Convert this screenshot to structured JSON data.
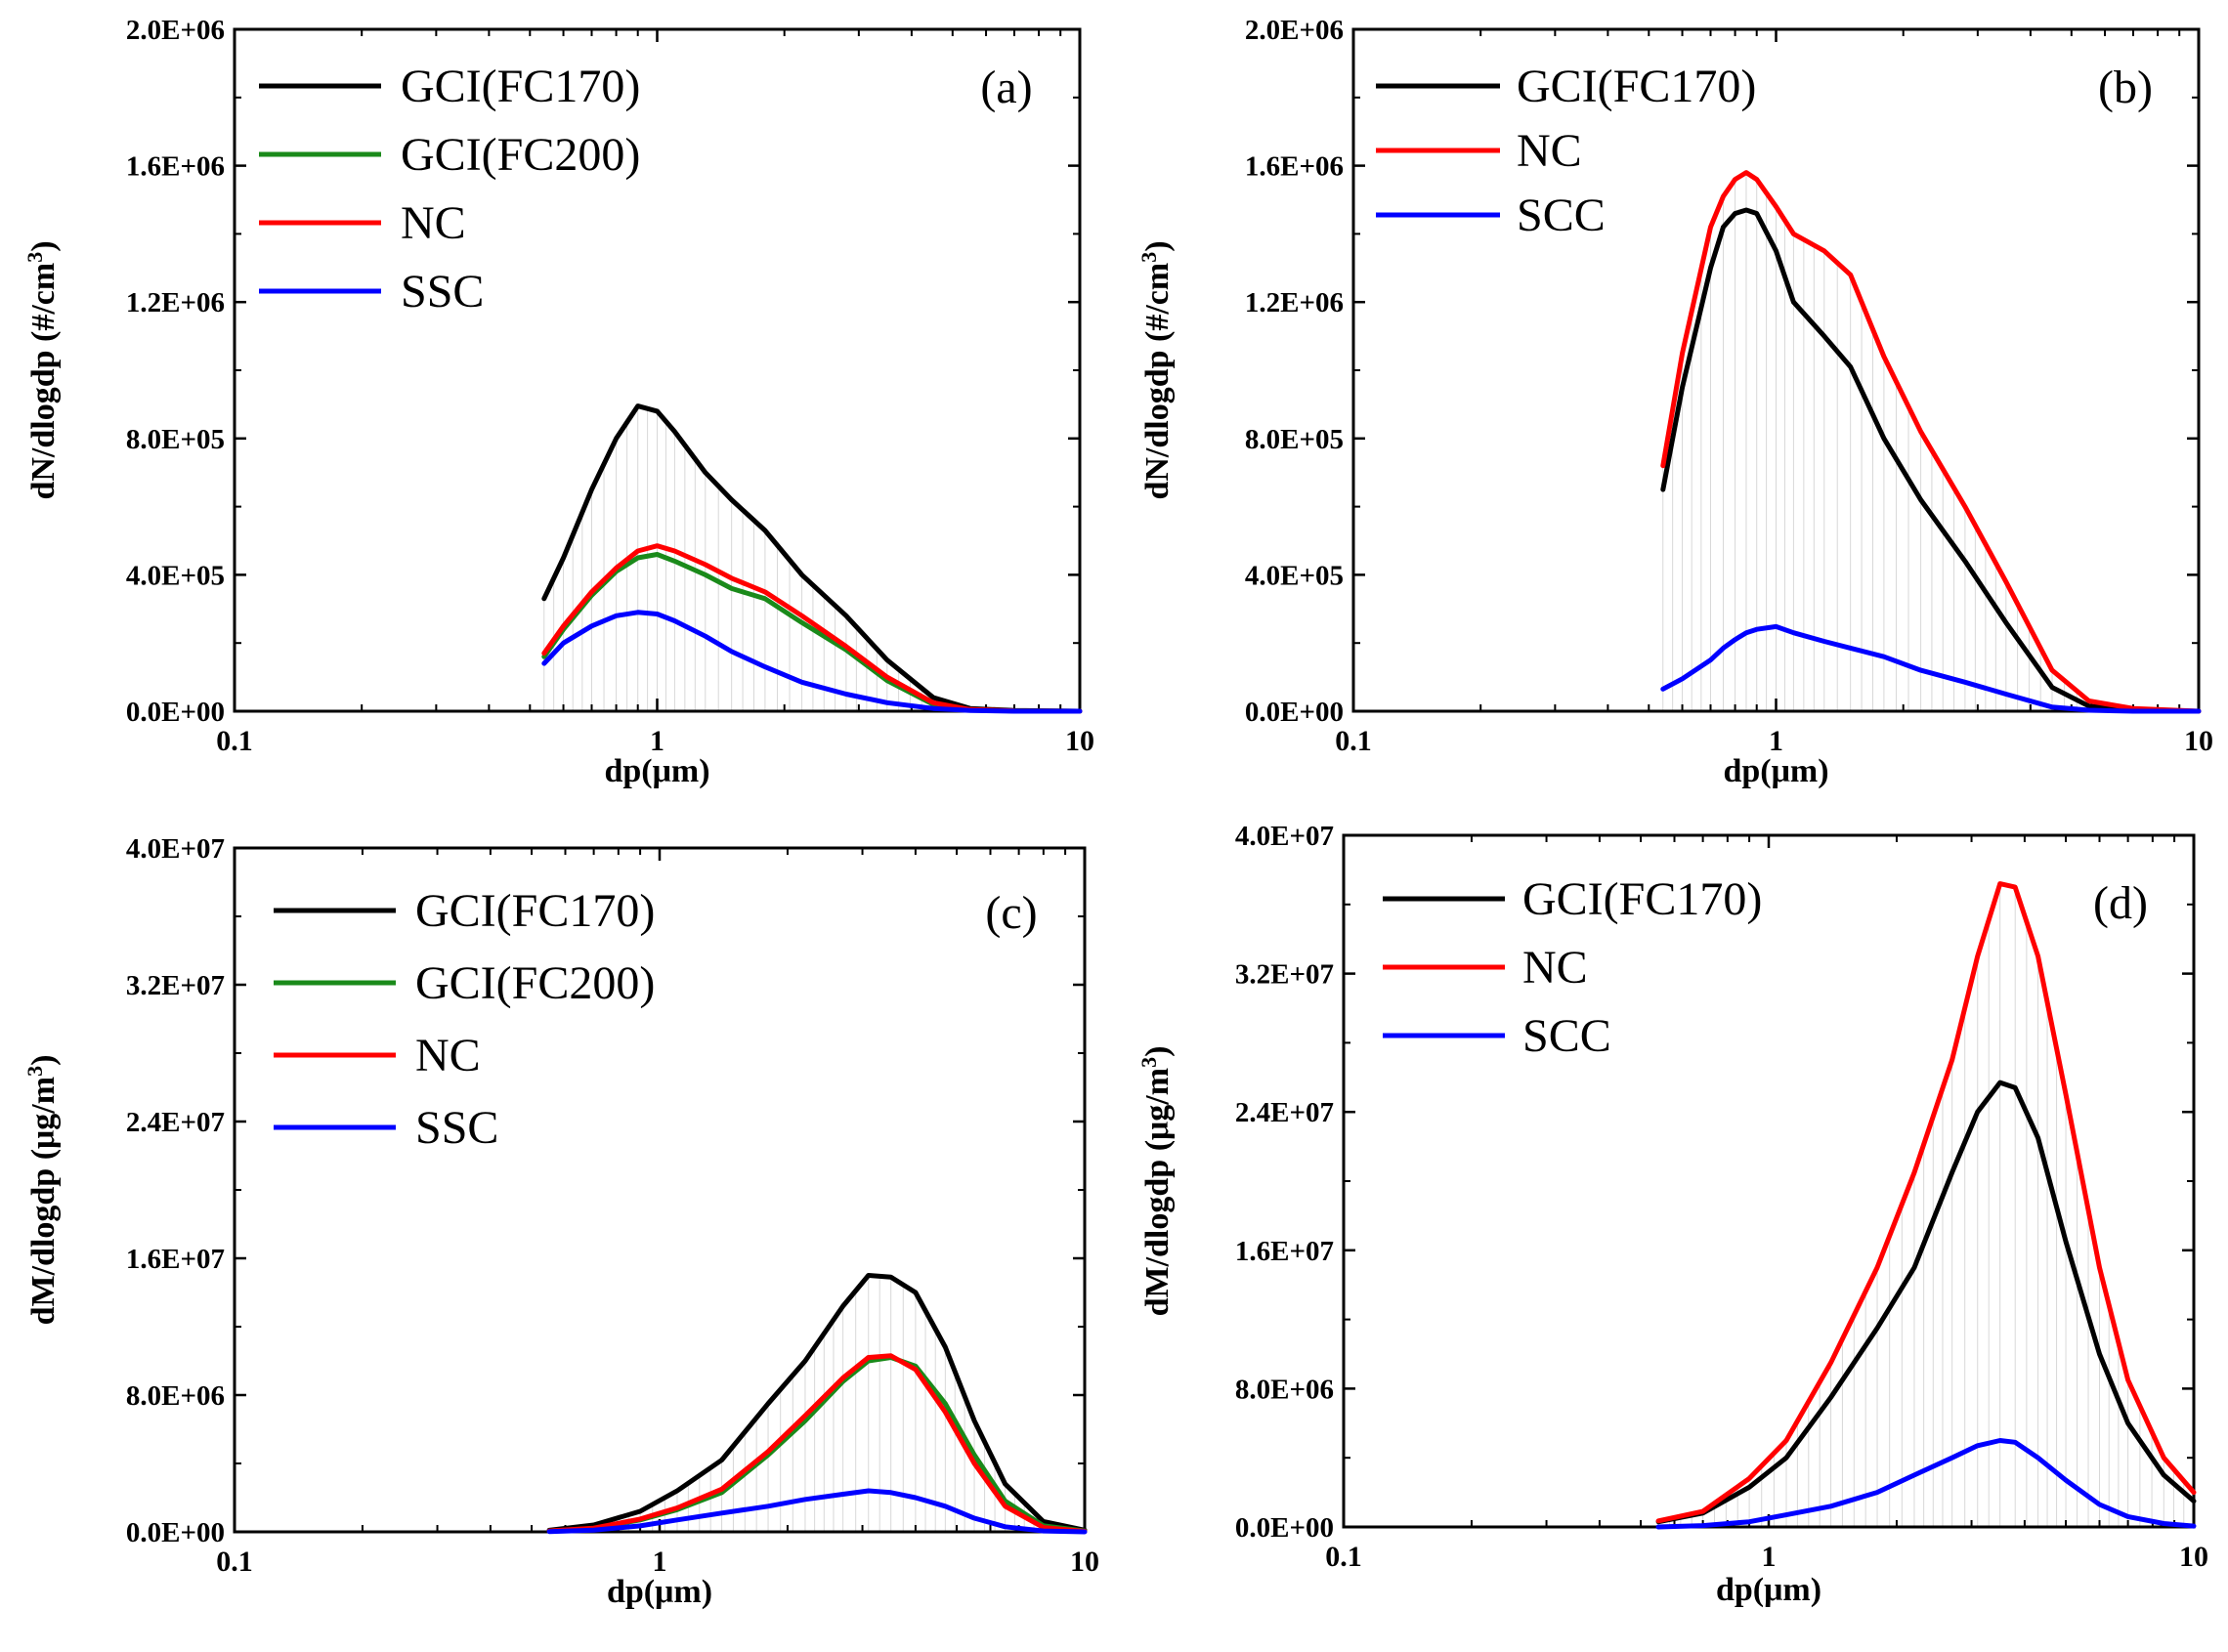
{
  "chart_data": [
    {
      "type": "line",
      "panel_label": "(a)",
      "xlabel": "dp(μm)",
      "ylabel": "dN/dlogdp (#/cm",
      "ylabel_sup": "3",
      "ylabel_end": ")",
      "x_scale": "log",
      "xlim": [
        0.1,
        10
      ],
      "ylim": [
        0,
        2000000
      ],
      "x_tick_labels": [
        "0.1",
        "1",
        "10"
      ],
      "y_tick_labels": [
        "0.0E+00",
        "4.0E+05",
        "8.0E+05",
        "1.2E+06",
        "1.6E+06",
        "2.0E+06"
      ],
      "legend_position": "top-left",
      "x": [
        0.54,
        0.6,
        0.7,
        0.8,
        0.9,
        1.0,
        1.1,
        1.3,
        1.5,
        1.8,
        2.2,
        2.8,
        3.5,
        4.5,
        5.5,
        7.0,
        10.0
      ],
      "series": [
        {
          "name": "GCI(FC170)",
          "color": "#000000",
          "values": [
            330000,
            450000,
            650000,
            800000,
            895000,
            880000,
            820000,
            700000,
            620000,
            530000,
            400000,
            280000,
            150000,
            40000,
            8000,
            2000,
            0
          ]
        },
        {
          "name": "GCI(FC200)",
          "color": "#1a8a1a",
          "values": [
            160000,
            240000,
            340000,
            410000,
            450000,
            460000,
            440000,
            400000,
            360000,
            330000,
            260000,
            180000,
            90000,
            20000,
            4000,
            1000,
            0
          ]
        },
        {
          "name": "NC",
          "color": "#ff0000",
          "values": [
            170000,
            250000,
            350000,
            420000,
            470000,
            485000,
            470000,
            430000,
            390000,
            350000,
            280000,
            190000,
            100000,
            25000,
            5000,
            1000,
            0
          ]
        },
        {
          "name": "SSC",
          "color": "#0000ff",
          "values": [
            140000,
            200000,
            250000,
            280000,
            290000,
            285000,
            265000,
            220000,
            175000,
            130000,
            85000,
            50000,
            25000,
            8000,
            2000,
            0,
            0
          ]
        }
      ]
    },
    {
      "type": "line",
      "panel_label": "(b)",
      "xlabel": "dp(μm)",
      "ylabel": "dN/dlogdp (#/cm",
      "ylabel_sup": "3",
      "ylabel_end": ")",
      "x_scale": "log",
      "xlim": [
        0.1,
        10
      ],
      "ylim": [
        0,
        2000000
      ],
      "x_tick_labels": [
        "0.1",
        "1",
        "10"
      ],
      "y_tick_labels": [
        "0.0E+00",
        "4.0E+05",
        "8.0E+05",
        "1.2E+06",
        "1.6E+06",
        "2.0E+06"
      ],
      "legend_position": "top-left",
      "x": [
        0.54,
        0.6,
        0.7,
        0.75,
        0.8,
        0.85,
        0.9,
        1.0,
        1.1,
        1.3,
        1.5,
        1.8,
        2.2,
        2.8,
        3.5,
        4.5,
        5.5,
        7.0,
        10.0
      ],
      "series": [
        {
          "name": "GCI(FC170)",
          "color": "#000000",
          "values": [
            650000,
            950000,
            1300000,
            1420000,
            1460000,
            1470000,
            1460000,
            1350000,
            1200000,
            1100000,
            1010000,
            800000,
            620000,
            440000,
            260000,
            70000,
            15000,
            3000,
            0
          ]
        },
        {
          "name": "NC",
          "color": "#ff0000",
          "values": [
            720000,
            1050000,
            1420000,
            1510000,
            1560000,
            1580000,
            1560000,
            1480000,
            1400000,
            1350000,
            1280000,
            1040000,
            820000,
            600000,
            380000,
            120000,
            30000,
            8000,
            0
          ]
        },
        {
          "name": "SCC",
          "color": "#0000ff",
          "values": [
            65000,
            95000,
            150000,
            185000,
            210000,
            230000,
            240000,
            248000,
            230000,
            205000,
            185000,
            160000,
            120000,
            85000,
            50000,
            12000,
            3000,
            0,
            0
          ]
        }
      ]
    },
    {
      "type": "line",
      "panel_label": "(c)",
      "xlabel": "dp(μm)",
      "ylabel": "dM/dlogdp (μg/m",
      "ylabel_sup": "3",
      "ylabel_end": ")",
      "x_scale": "log",
      "xlim": [
        0.1,
        10
      ],
      "ylim": [
        0,
        40000000
      ],
      "x_tick_labels": [
        "0.1",
        "1",
        "10"
      ],
      "y_tick_labels": [
        "0.0E+00",
        "8.0E+06",
        "1.6E+07",
        "2.4E+07",
        "3.2E+07",
        "4.0E+07"
      ],
      "legend_position": "top-left",
      "x": [
        0.55,
        0.7,
        0.9,
        1.1,
        1.4,
        1.8,
        2.2,
        2.7,
        3.1,
        3.5,
        4.0,
        4.7,
        5.5,
        6.5,
        8.0,
        10.0
      ],
      "series": [
        {
          "name": "GCI(FC170)",
          "color": "#000000",
          "values": [
            100000,
            400000,
            1200000,
            2400000,
            4200000,
            7500000,
            10000000,
            13200000,
            15000000,
            14900000,
            14000000,
            10800000,
            6500000,
            2800000,
            600000,
            100000
          ]
        },
        {
          "name": "GCI(FC200)",
          "color": "#1a8a1a",
          "values": [
            50000,
            200000,
            700000,
            1300000,
            2300000,
            4500000,
            6500000,
            8800000,
            10000000,
            10200000,
            9700000,
            7500000,
            4500000,
            1800000,
            350000,
            50000
          ]
        },
        {
          "name": "NC",
          "color": "#ff0000",
          "values": [
            50000,
            220000,
            750000,
            1400000,
            2500000,
            4700000,
            6800000,
            9000000,
            10200000,
            10300000,
            9500000,
            7000000,
            4000000,
            1500000,
            250000,
            30000
          ]
        },
        {
          "name": "SSC",
          "color": "#0000ff",
          "values": [
            20000,
            100000,
            350000,
            700000,
            1100000,
            1500000,
            1900000,
            2200000,
            2400000,
            2300000,
            2000000,
            1500000,
            800000,
            300000,
            50000,
            0
          ]
        }
      ]
    },
    {
      "type": "line",
      "panel_label": "(d)",
      "xlabel": "dp(μm)",
      "ylabel": "dM/dlogdp (μg/m",
      "ylabel_sup": "3",
      "ylabel_end": ")",
      "x_scale": "log",
      "xlim": [
        0.1,
        10
      ],
      "ylim": [
        0,
        40000000
      ],
      "x_tick_labels": [
        "0.1",
        "1",
        "10"
      ],
      "y_tick_labels": [
        "0.0E+00",
        "8.0E+06",
        "1.6E+07",
        "2.4E+07",
        "3.2E+07",
        "4.0E+07"
      ],
      "legend_position": "top-left",
      "x": [
        0.55,
        0.7,
        0.9,
        1.1,
        1.4,
        1.8,
        2.2,
        2.7,
        3.1,
        3.5,
        3.8,
        4.3,
        5.0,
        6.0,
        7.0,
        8.5,
        10.0
      ],
      "series": [
        {
          "name": "GCI(FC170)",
          "color": "#000000",
          "values": [
            300000,
            800000,
            2300000,
            4000000,
            7500000,
            11500000,
            15000000,
            20500000,
            24000000,
            25700000,
            25400000,
            22500000,
            16500000,
            10000000,
            6000000,
            3000000,
            1500000
          ]
        },
        {
          "name": "NC",
          "color": "#ff0000",
          "values": [
            350000,
            900000,
            2800000,
            5000000,
            9500000,
            15000000,
            20500000,
            27000000,
            33000000,
            37200000,
            37000000,
            33000000,
            25000000,
            15000000,
            8500000,
            4000000,
            2000000
          ]
        },
        {
          "name": "SCC",
          "color": "#0000ff",
          "values": [
            0,
            80000,
            300000,
            700000,
            1200000,
            2000000,
            3000000,
            4000000,
            4700000,
            5000000,
            4900000,
            4000000,
            2700000,
            1300000,
            600000,
            200000,
            50000
          ]
        }
      ]
    }
  ]
}
